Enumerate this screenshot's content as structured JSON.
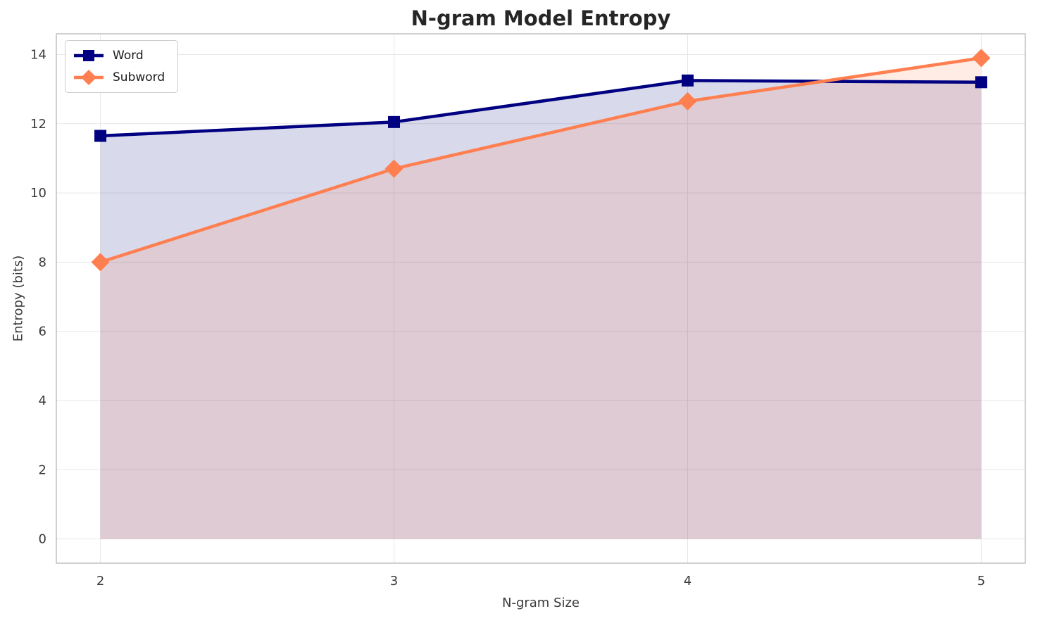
{
  "chart_data": {
    "type": "line",
    "title": "N-gram Model Entropy",
    "xlabel": "N-gram Size",
    "ylabel": "Entropy (bits)",
    "x": [
      2,
      3,
      4,
      5
    ],
    "series": [
      {
        "name": "Word",
        "values": [
          11.65,
          12.05,
          13.25,
          13.2
        ],
        "color": "#000080",
        "marker": "square"
      },
      {
        "name": "Subword",
        "values": [
          8.0,
          10.7,
          12.65,
          13.9
        ],
        "color": "#FF7F50",
        "marker": "diamond"
      }
    ],
    "xticks": [
      2,
      3,
      4,
      5
    ],
    "yticks": [
      0,
      2,
      4,
      6,
      8,
      10,
      12,
      14
    ],
    "xlim": [
      1.85,
      5.15
    ],
    "ylim": [
      -0.7,
      14.6
    ],
    "fill_to": 0,
    "fill_opacity": 0.15,
    "grid": true,
    "grid_color": "#e7e7e7",
    "spine_color": "#b7b7b7",
    "legend_position": "upper left"
  }
}
